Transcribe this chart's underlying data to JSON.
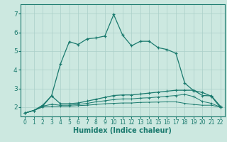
{
  "xlabel": "Humidex (Indice chaleur)",
  "background_color": "#cce8e0",
  "grid_color": "#aacfc8",
  "line_color": "#1a7a6e",
  "xlim": [
    -0.5,
    22.5
  ],
  "ylim": [
    1.5,
    7.5
  ],
  "xticks": [
    0,
    1,
    2,
    3,
    4,
    5,
    6,
    7,
    8,
    9,
    10,
    11,
    12,
    13,
    14,
    15,
    16,
    17,
    18,
    19,
    20,
    21,
    22
  ],
  "yticks": [
    2,
    3,
    4,
    5,
    6,
    7
  ],
  "series1_x": [
    0,
    1,
    2,
    3,
    4,
    5,
    6,
    7,
    8,
    9,
    10,
    11,
    12,
    13,
    14,
    15,
    16,
    17,
    18,
    19,
    20,
    21,
    22
  ],
  "series1_y": [
    1.68,
    1.82,
    2.05,
    2.6,
    4.3,
    5.5,
    5.35,
    5.65,
    5.7,
    5.8,
    6.95,
    5.85,
    5.28,
    5.52,
    5.52,
    5.18,
    5.08,
    4.88,
    3.28,
    2.88,
    2.78,
    2.58,
    1.98
  ],
  "series2_x": [
    0,
    1,
    2,
    3,
    4,
    5,
    6,
    7,
    8,
    9,
    10,
    11,
    12,
    13,
    14,
    15,
    16,
    17,
    18,
    19,
    20,
    21,
    22
  ],
  "series2_y": [
    1.68,
    1.82,
    2.1,
    2.6,
    2.18,
    2.18,
    2.22,
    2.32,
    2.42,
    2.52,
    2.62,
    2.65,
    2.65,
    2.7,
    2.75,
    2.8,
    2.85,
    2.9,
    2.9,
    2.9,
    2.62,
    2.6,
    2.05
  ],
  "series3_x": [
    0,
    1,
    2,
    3,
    4,
    5,
    6,
    7,
    8,
    9,
    10,
    11,
    12,
    13,
    14,
    15,
    16,
    17,
    18,
    19,
    20,
    21,
    22
  ],
  "series3_y": [
    1.68,
    1.82,
    2.05,
    2.15,
    2.1,
    2.1,
    2.14,
    2.2,
    2.28,
    2.34,
    2.4,
    2.44,
    2.44,
    2.48,
    2.5,
    2.54,
    2.58,
    2.62,
    2.68,
    2.56,
    2.3,
    2.2,
    2.0
  ],
  "series4_x": [
    0,
    1,
    2,
    3,
    4,
    5,
    6,
    7,
    8,
    9,
    10,
    11,
    12,
    13,
    14,
    15,
    16,
    17,
    18,
    19,
    20,
    21,
    22
  ],
  "series4_y": [
    1.68,
    1.82,
    2.0,
    2.05,
    2.05,
    2.05,
    2.08,
    2.1,
    2.14,
    2.18,
    2.2,
    2.22,
    2.22,
    2.25,
    2.26,
    2.27,
    2.28,
    2.28,
    2.2,
    2.14,
    2.1,
    2.1,
    2.0
  ]
}
